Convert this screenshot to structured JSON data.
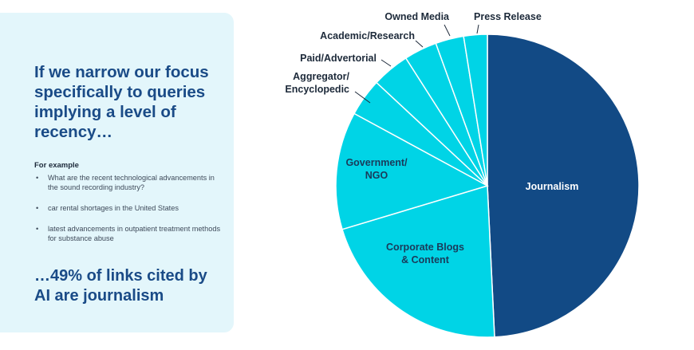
{
  "headline": "If we narrow our focus specifically to queries implying a level of recency…",
  "examples": {
    "label": "For example",
    "items": [
      "What are the recent technological advancements in the sound recording industry?",
      "car rental shortages in the United States",
      "latest advancements in outpatient treatment methods for substance abuse"
    ]
  },
  "conclusion": "…49% of links cited by AI are journalism",
  "bullet_char": "•",
  "colors": {
    "panel_bg": "#e3f6fb",
    "headline": "#1a4b87",
    "journalism": "#124a85",
    "cyan": "#00d4e6",
    "slice_stroke": "#ffffff"
  },
  "chart_data": {
    "type": "pie",
    "title": "",
    "start": "12 o'clock",
    "direction": "clockwise",
    "slices": [
      {
        "label": "Journalism",
        "value": 49,
        "color": "#124a85",
        "label_lines": [
          "Journalism"
        ]
      },
      {
        "label": "Corporate Blogs & Content",
        "value": 21,
        "color": "#00d4e6",
        "label_lines": [
          "Corporate Blogs",
          "& Content"
        ]
      },
      {
        "label": "Government/ NGO",
        "value": 12.5,
        "color": "#00d4e6",
        "label_lines": [
          "Government/",
          "NGO"
        ]
      },
      {
        "label": "Aggregator/ Encyclopedic",
        "value": 4,
        "color": "#00d4e6",
        "label_lines": [
          "Aggregator/",
          "Encyclopedic"
        ]
      },
      {
        "label": "Paid/Advertorial",
        "value": 4,
        "color": "#00d4e6",
        "label_lines": [
          "Paid/Advertorial"
        ]
      },
      {
        "label": "Academic/Research",
        "value": 3.5,
        "color": "#00d4e6",
        "label_lines": [
          "Academic/Research"
        ]
      },
      {
        "label": "Owned Media",
        "value": 3,
        "color": "#00d4e6",
        "label_lines": [
          "Owned Media"
        ]
      },
      {
        "label": "Press Release",
        "value": 2.5,
        "color": "#00d4e6",
        "label_lines": [
          "Press Release"
        ]
      }
    ]
  }
}
